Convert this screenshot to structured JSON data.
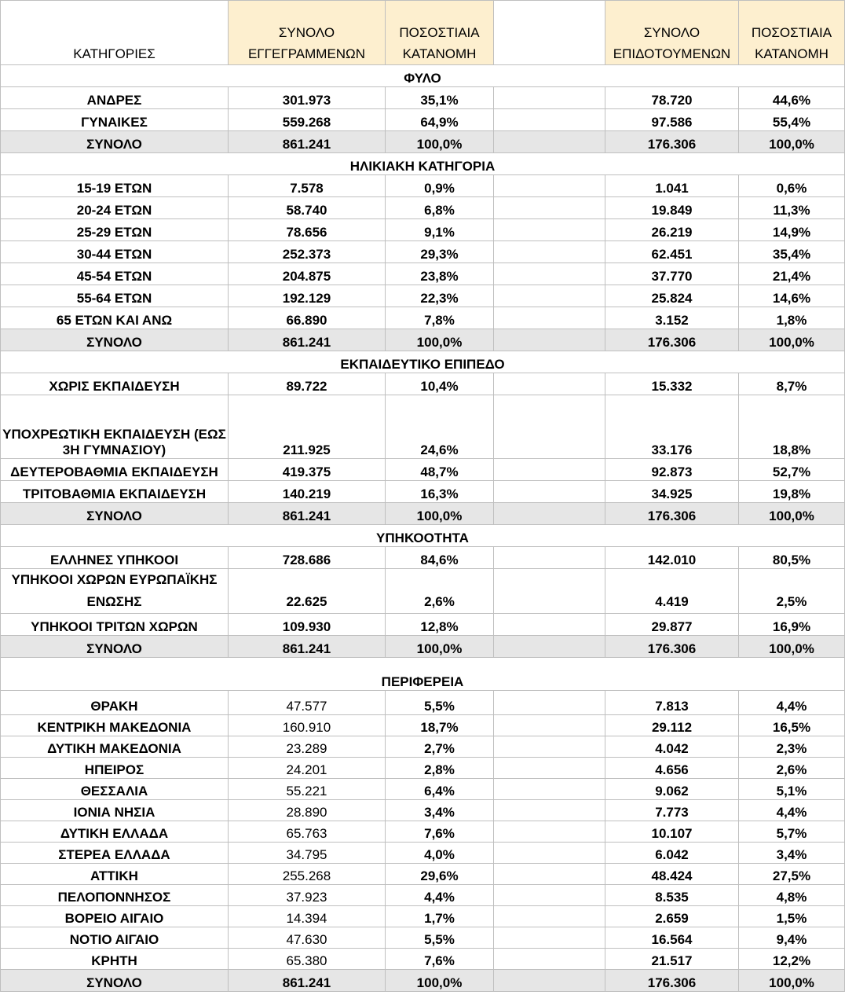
{
  "header": {
    "categories": "ΚΑΤΗΓΟΡΙΕΣ",
    "registered_l1": "ΣΥΝΟΛΟ",
    "registered_l2": "ΕΓΓΕΓΡΑΜΜΕΝΩΝ",
    "pct1_l1": "ΠΟΣΟΣΤΙΑΙΑ",
    "pct1_l2": "ΚΑΤΑΝΟΜΗ",
    "subsidized_l1": "ΣΥΝΟΛΟ",
    "subsidized_l2": "ΕΠΙΔΟΤΟΥΜΕΝΩΝ",
    "pct2_l1": "ΠΟΣΟΣΤΙΑΙΑ",
    "pct2_l2": "ΚΑΤΑΝΟΜΗ"
  },
  "colors": {
    "header_bg": "#fdefcf",
    "total_bg": "#e6e6e6",
    "grid": "#bfbfbf"
  },
  "sections": {
    "gender": {
      "title": "ΦΥΛΟ",
      "rows": [
        [
          "ΑΝΔΡΕΣ",
          "301.973",
          "35,1%",
          "78.720",
          "44,6%"
        ],
        [
          "ΓΥΝΑΙΚΕΣ",
          "559.268",
          "64,9%",
          "97.586",
          "55,4%"
        ]
      ],
      "total": [
        "ΣΥΝΟΛΟ",
        "861.241",
        "100,0%",
        "176.306",
        "100,0%"
      ]
    },
    "age": {
      "title": "ΗΛΙΚΙΑΚΗ ΚΑΤΗΓΟΡΙΑ",
      "rows": [
        [
          "15-19 ΕΤΩΝ",
          "7.578",
          "0,9%",
          "1.041",
          "0,6%"
        ],
        [
          "20-24 ΕΤΩΝ",
          "58.740",
          "6,8%",
          "19.849",
          "11,3%"
        ],
        [
          "25-29 ΕΤΩΝ",
          "78.656",
          "9,1%",
          "26.219",
          "14,9%"
        ],
        [
          "30-44 ΕΤΩΝ",
          "252.373",
          "29,3%",
          "62.451",
          "35,4%"
        ],
        [
          "45-54 ΕΤΩΝ",
          "204.875",
          "23,8%",
          "37.770",
          "21,4%"
        ],
        [
          "55-64 ΕΤΩΝ",
          "192.129",
          "22,3%",
          "25.824",
          "14,6%"
        ],
        [
          "65 ΕΤΩΝ ΚΑΙ ΑΝΩ",
          "66.890",
          "7,8%",
          "3.152",
          "1,8%"
        ]
      ],
      "total": [
        "ΣΥΝΟΛΟ",
        "861.241",
        "100,0%",
        "176.306",
        "100,0%"
      ]
    },
    "education": {
      "title": "ΕΚΠΑΙΔΕΥΤΙΚΟ ΕΠΙΠΕΔΟ",
      "rows": [
        [
          "ΧΩΡΙΣ ΕΚΠΑΙΔΕΥΣΗ",
          "89.722",
          "10,4%",
          "15.332",
          "8,7%"
        ],
        [
          "ΥΠΟΧΡΕΩΤΙΚΗ ΕΚΠΑΙΔΕΥΣΗ (ΕΩΣ 3Η ΓΥΜΝΑΣΙΟΥ)",
          "211.925",
          "24,6%",
          "33.176",
          "18,8%"
        ],
        [
          "ΔΕΥΤΕΡΟΒΑΘΜΙΑ ΕΚΠΑΙΔΕΥΣΗ",
          "419.375",
          "48,7%",
          "92.873",
          "52,7%"
        ],
        [
          "ΤΡΙΤΟΒΑΘΜΙΑ ΕΚΠΑΙΔΕΥΣΗ",
          "140.219",
          "16,3%",
          "34.925",
          "19,8%"
        ]
      ],
      "total": [
        "ΣΥΝΟΛΟ",
        "861.241",
        "100,0%",
        "176.306",
        "100,0%"
      ]
    },
    "citizenship": {
      "title": "ΥΠΗΚΟΟΤΗΤΑ",
      "rows": [
        [
          "ΕΛΛΗΝΕΣ ΥΠΗΚΟΟΙ",
          "728.686",
          "84,6%",
          "142.010",
          "80,5%"
        ],
        [
          "ΥΠΗΚΟΟΙ ΧΩΡΩΝ ΕΥΡΩΠΑΪΚΗΣ ΕΝΩΣΗΣ",
          "22.625",
          "2,6%",
          "4.419",
          "2,5%"
        ],
        [
          "ΥΠΗΚΟΟΙ ΤΡΙΤΩΝ ΧΩΡΩΝ",
          "109.930",
          "12,8%",
          "29.877",
          "16,9%"
        ]
      ],
      "total": [
        "ΣΥΝΟΛΟ",
        "861.241",
        "100,0%",
        "176.306",
        "100,0%"
      ]
    },
    "region": {
      "title": "ΠΕΡΙΦΕΡΕΙΑ",
      "rows": [
        [
          "ΘΡΑΚΗ",
          "47.577",
          "5,5%",
          "7.813",
          "4,4%"
        ],
        [
          "ΚΕΝΤΡΙΚΗ ΜΑΚΕΔΟΝΙΑ",
          "160.910",
          "18,7%",
          "29.112",
          "16,5%"
        ],
        [
          "ΔΥΤΙΚΗ ΜΑΚΕΔΟΝΙΑ",
          "23.289",
          "2,7%",
          "4.042",
          "2,3%"
        ],
        [
          "ΗΠΕΙΡΟΣ",
          "24.201",
          "2,8%",
          "4.656",
          "2,6%"
        ],
        [
          "ΘΕΣΣΑΛΙΑ",
          "55.221",
          "6,4%",
          "9.062",
          "5,1%"
        ],
        [
          "ΙΟΝΙΑ ΝΗΣΙΑ",
          "28.890",
          "3,4%",
          "7.773",
          "4,4%"
        ],
        [
          "ΔΥΤΙΚΗ ΕΛΛΑΔΑ",
          "65.763",
          "7,6%",
          "10.107",
          "5,7%"
        ],
        [
          "ΣΤΕΡΕΑ ΕΛΛΑΔΑ",
          "34.795",
          "4,0%",
          "6.042",
          "3,4%"
        ],
        [
          "ΑΤΤΙΚΗ",
          "255.268",
          "29,6%",
          "48.424",
          "27,5%"
        ],
        [
          "ΠΕΛΟΠΟΝΝΗΣΟΣ",
          "37.923",
          "4,4%",
          "8.535",
          "4,8%"
        ],
        [
          "ΒΟΡΕΙΟ ΑΙΓΑΙΟ",
          "14.394",
          "1,7%",
          "2.659",
          "1,5%"
        ],
        [
          "ΝΟΤΙΟ ΑΙΓΑΙΟ",
          "47.630",
          "5,5%",
          "16.564",
          "9,4%"
        ],
        [
          "ΚΡΗΤΗ",
          "65.380",
          "7,6%",
          "21.517",
          "12,2%"
        ]
      ],
      "total": [
        "ΣΥΝΟΛΟ",
        "861.241",
        "100,0%",
        "176.306",
        "100,0%"
      ]
    }
  }
}
